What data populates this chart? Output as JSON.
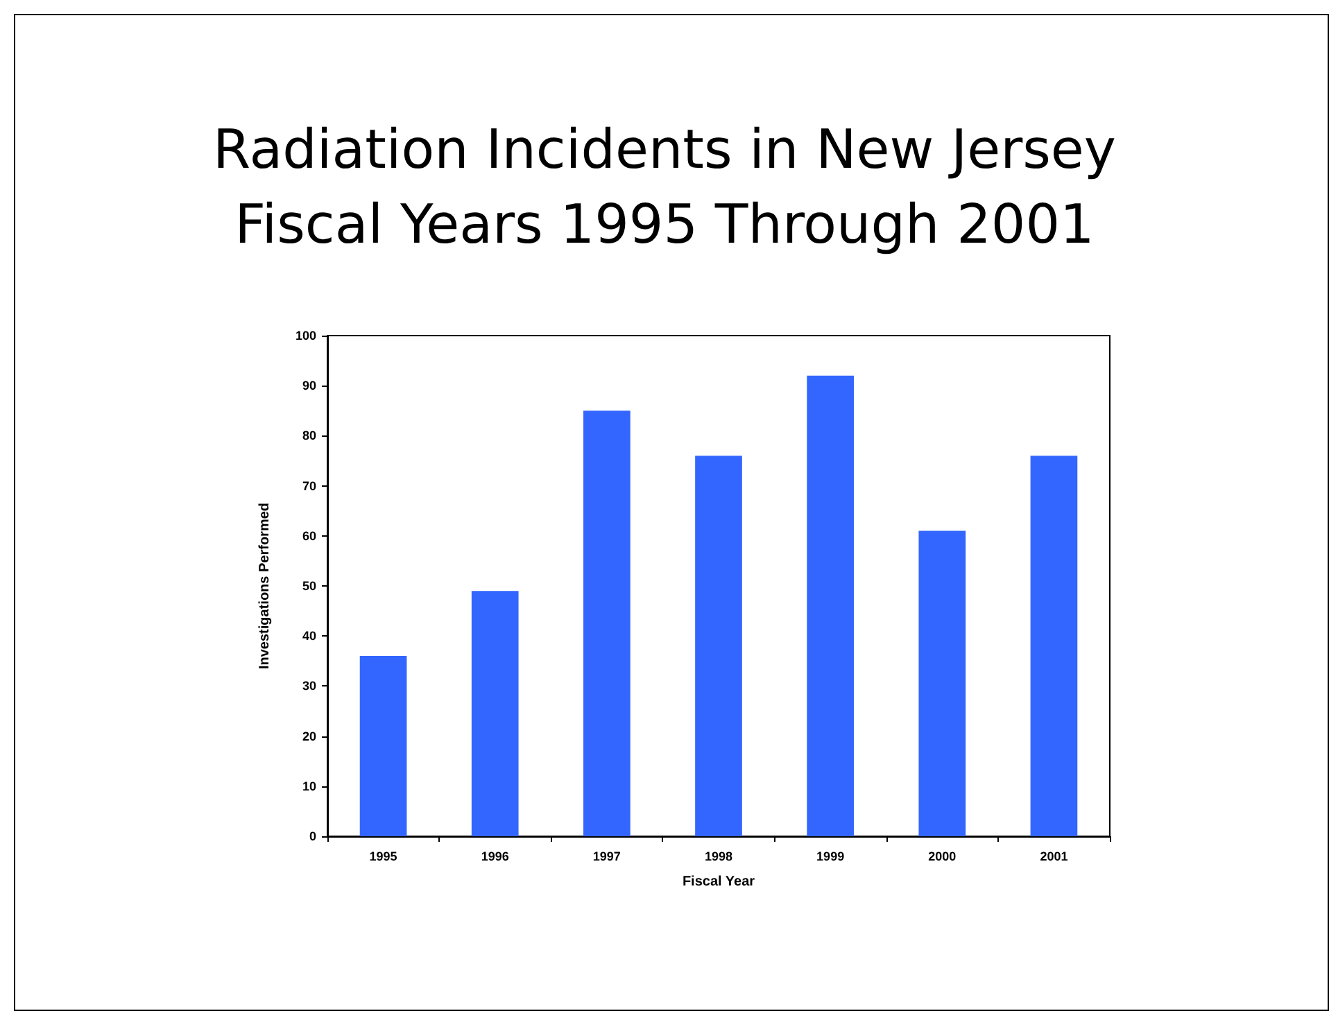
{
  "chart_data": {
    "type": "bar",
    "title": "Radiation Incidents in New Jersey\nFiscal Years 1995 Through 2001",
    "xlabel": "Fiscal Year",
    "ylabel": "Investigations Performed",
    "categories": [
      "1995",
      "1996",
      "1997",
      "1998",
      "1999",
      "2000",
      "2001"
    ],
    "values": [
      36,
      49,
      85,
      76,
      92,
      61,
      76
    ],
    "color": "#3366ff",
    "ylim": [
      0,
      100
    ],
    "yticks": [
      0,
      10,
      20,
      30,
      40,
      50,
      60,
      70,
      80,
      90,
      100
    ],
    "grid": false
  }
}
